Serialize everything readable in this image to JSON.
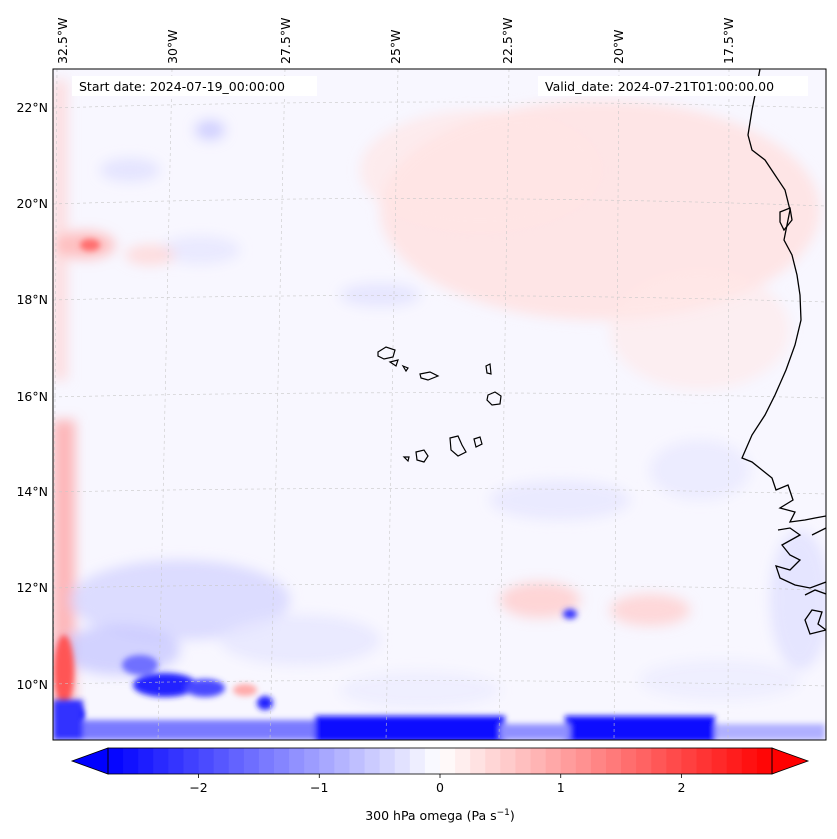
{
  "map": {
    "start_date_text": "Start date: 2024-07-19_00:00:00",
    "valid_date_text": "Valid_date: 2024-07-21T01:00:00.00",
    "lon_ticks": [
      {
        "label": "32.5°W"
      },
      {
        "label": "30°W"
      },
      {
        "label": "27.5°W"
      },
      {
        "label": "25°W"
      },
      {
        "label": "22.5°W"
      },
      {
        "label": "20°W"
      },
      {
        "label": "17.5°W"
      }
    ],
    "lat_ticks": [
      {
        "label": "22°N"
      },
      {
        "label": "20°N"
      },
      {
        "label": "18°N"
      },
      {
        "label": "16°N"
      },
      {
        "label": "14°N"
      },
      {
        "label": "12°N"
      },
      {
        "label": "10°N"
      }
    ],
    "field": "300 hPa omega",
    "colormap": "bwr",
    "colors": {
      "neg": "#0000ff",
      "zero": "#ffffff",
      "pos": "#ff0000",
      "coast": "#000000",
      "grid": "#c8c8c8"
    }
  },
  "colorbar": {
    "label_main": "300 hPa omega (Pa s",
    "label_exp": "−1",
    "label_close": ")",
    "range": [
      -2.75,
      2.75
    ],
    "extend": "both",
    "ticks": [
      {
        "value": -2,
        "label": "−2"
      },
      {
        "value": -1,
        "label": "−1"
      },
      {
        "value": 0,
        "label": "0"
      },
      {
        "value": 1,
        "label": "1"
      },
      {
        "value": 2,
        "label": "2"
      }
    ]
  }
}
